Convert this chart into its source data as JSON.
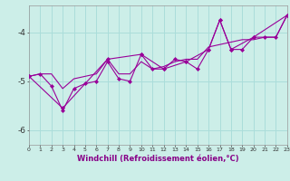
{
  "xlabel": "Windchill (Refroidissement éolien,°C)",
  "bg_color": "#cceee8",
  "grid_color": "#aaddda",
  "line_color": "#990099",
  "x_min": 0,
  "x_max": 23,
  "y_min": -6.3,
  "y_max": -3.45,
  "yticks": [
    -6,
    -5,
    -4
  ],
  "xticks": [
    0,
    1,
    2,
    3,
    4,
    5,
    6,
    7,
    8,
    9,
    10,
    11,
    12,
    13,
    14,
    15,
    16,
    17,
    18,
    19,
    20,
    21,
    22,
    23
  ],
  "series1_x": [
    0,
    1,
    2,
    3,
    4,
    5,
    6,
    7,
    8,
    9,
    10,
    11,
    12,
    13,
    14,
    15,
    16,
    17,
    18,
    19,
    20,
    21,
    22,
    23
  ],
  "series1_y": [
    -4.9,
    -4.85,
    -4.85,
    -5.15,
    -4.95,
    -4.9,
    -4.85,
    -4.55,
    -4.85,
    -4.85,
    -4.6,
    -4.75,
    -4.7,
    -4.6,
    -4.55,
    -4.55,
    -4.3,
    -4.25,
    -4.2,
    -4.15,
    -4.15,
    -4.1,
    -4.1,
    -3.65
  ],
  "series2_x": [
    0,
    1,
    2,
    3,
    4,
    5,
    6,
    7,
    8,
    9,
    10,
    11,
    12,
    13,
    14,
    15,
    16,
    17,
    18,
    19,
    20,
    21,
    22,
    23
  ],
  "series2_y": [
    -4.9,
    -4.85,
    -5.1,
    -5.6,
    -5.15,
    -5.05,
    -5.0,
    -4.6,
    -4.95,
    -5.0,
    -4.45,
    -4.75,
    -4.75,
    -4.55,
    -4.6,
    -4.75,
    -4.35,
    -3.75,
    -4.35,
    -4.35,
    -4.1,
    -4.1,
    -4.1,
    -3.65
  ],
  "series3_x": [
    0,
    3,
    7,
    10,
    12,
    14,
    16,
    17,
    18,
    20,
    23
  ],
  "series3_y": [
    -4.9,
    -5.55,
    -4.55,
    -4.45,
    -4.75,
    -4.6,
    -4.35,
    -3.75,
    -4.35,
    -4.1,
    -3.65
  ]
}
